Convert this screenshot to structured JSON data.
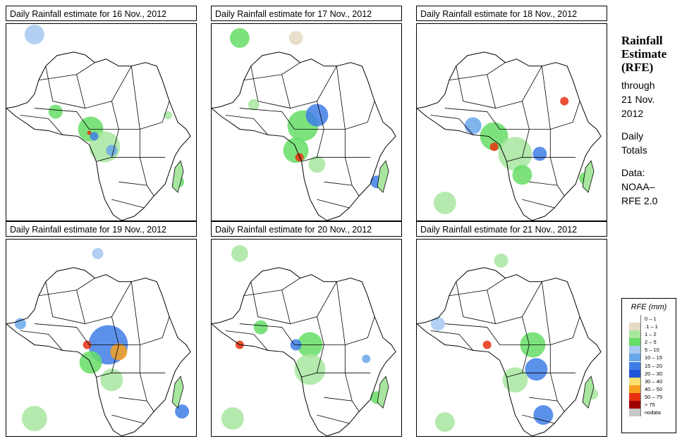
{
  "panels": [
    {
      "title": "Daily Rainfall estimate for  16 Nov., 2012"
    },
    {
      "title": "Daily Rainfall estimate for  17 Nov., 2012"
    },
    {
      "title": "Daily Rainfall estimate for  18 Nov., 2012"
    },
    {
      "title": "Daily Rainfall estimate for  19 Nov., 2012"
    },
    {
      "title": "Daily Rainfall estimate for  20 Nov., 2012"
    },
    {
      "title": "Daily Rainfall estimate for  21 Nov., 2012"
    }
  ],
  "side": {
    "line1": "Rainfall",
    "line2": "Estimate",
    "line3": "(RFE)",
    "through": "through",
    "date1": "21 Nov.",
    "date2": "2012",
    "daily": "Daily",
    "totals": "Totals",
    "data_label": "Data:",
    "source1": "NOAA–",
    "source2": "RFE 2.0"
  },
  "legend": {
    "title": "RFE (mm)",
    "items": [
      {
        "label": "0 – 1",
        "color": "#ffffff"
      },
      {
        "label": ".1 – 1",
        "color": "#e6d9c3"
      },
      {
        "label": "1 – 2",
        "color": "#a8e6a0"
      },
      {
        "label": "2 – 5",
        "color": "#66dd66"
      },
      {
        "label": "5 – 10",
        "color": "#a6c8f0"
      },
      {
        "label": "10 – 15",
        "color": "#6aa7ea"
      },
      {
        "label": "15 – 20",
        "color": "#3f7ee6"
      },
      {
        "label": "20 – 30",
        "color": "#2255d8"
      },
      {
        "label": "30 – 40",
        "color": "#f7e070"
      },
      {
        "label": "40 – 50",
        "color": "#f7a020"
      },
      {
        "label": "50 – 75",
        "color": "#e83010"
      },
      {
        "label": "> 75",
        "color": "#a00000"
      },
      {
        "label": "nodata",
        "color": "#c8c8c8"
      }
    ]
  }
}
